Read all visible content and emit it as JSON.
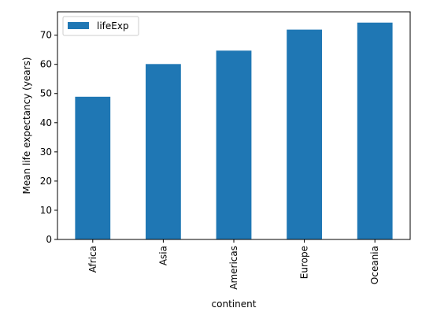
{
  "chart_data": {
    "type": "bar",
    "title": "",
    "xlabel": "continent",
    "ylabel": "Mean life expectancy (years)",
    "categories": [
      "Africa",
      "Asia",
      "Americas",
      "Europe",
      "Oceania"
    ],
    "series": [
      {
        "name": "lifeExp",
        "values": [
          48.9,
          60.1,
          64.7,
          71.9,
          74.3
        ],
        "color": "#1f77b4"
      }
    ],
    "ylim": [
      0,
      78
    ],
    "yticks": [
      0,
      10,
      20,
      30,
      40,
      50,
      60,
      70
    ],
    "grid": false,
    "legend_position": "top-left"
  }
}
